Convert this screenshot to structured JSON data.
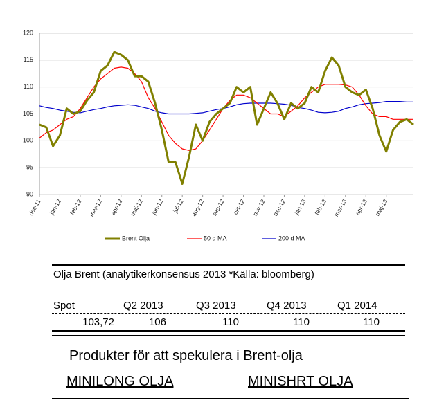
{
  "chart_data": {
    "type": "line",
    "categories": [
      "dec-11",
      null,
      null,
      "jan-12",
      null,
      null,
      "feb-12",
      null,
      null,
      "mar-12",
      null,
      null,
      "apr-12",
      null,
      null,
      "maj-12",
      null,
      null,
      "jun-12",
      null,
      null,
      "jul-12",
      null,
      null,
      "aug-12",
      null,
      null,
      "sep-12",
      null,
      null,
      "okt-12",
      null,
      null,
      "nov-12",
      null,
      null,
      "dec-12",
      null,
      null,
      "jan-13",
      null,
      null,
      "feb-13",
      null,
      null,
      "mar-13",
      null,
      null,
      "apr-13",
      null,
      null,
      "maj-13",
      null,
      null,
      null,
      null
    ],
    "series": [
      {
        "name": "Brent Olja",
        "color": "#808000",
        "values": [
          103,
          102.5,
          99,
          101,
          106,
          105,
          105.5,
          107.5,
          109,
          113,
          114,
          116.5,
          116,
          115,
          112,
          112,
          111,
          107,
          102,
          96,
          96,
          92,
          97,
          103,
          100,
          103.5,
          105,
          106,
          107,
          110,
          109,
          110,
          103,
          106,
          109,
          107,
          104,
          107,
          106,
          107,
          110,
          109,
          113,
          115.5,
          114,
          110,
          109,
          108.5,
          109.5,
          106,
          101,
          98,
          102,
          103.5,
          104,
          103
        ]
      },
      {
        "name": "50 d MA",
        "color": "#ff0000",
        "values": [
          100.5,
          101.5,
          102,
          103,
          104,
          104.5,
          106,
          108,
          110,
          111.5,
          112.5,
          113.5,
          113.7,
          113.5,
          112.5,
          111,
          108,
          106,
          103.5,
          101,
          99.5,
          98.5,
          98.2,
          98.5,
          100,
          102,
          104,
          106,
          107.5,
          108.5,
          108.5,
          108,
          107,
          106,
          105,
          105,
          104.5,
          105.5,
          106.5,
          108,
          109,
          110,
          110.5,
          110.5,
          110.5,
          110.4,
          110,
          108.5,
          106.5,
          105,
          104.5,
          104.5,
          104,
          104,
          104,
          104
        ]
      },
      {
        "name": "200 d MA",
        "color": "#0000cc",
        "values": [
          106.5,
          106.2,
          106,
          105.7,
          105.5,
          105.3,
          105.2,
          105.5,
          105.8,
          106,
          106.3,
          106.5,
          106.6,
          106.7,
          106.6,
          106.3,
          106,
          105.5,
          105.2,
          105,
          105,
          105,
          105,
          105.1,
          105.2,
          105.5,
          105.8,
          106,
          106.3,
          106.7,
          106.9,
          107,
          107,
          107,
          107,
          106.9,
          106.8,
          106.6,
          106.2,
          106,
          105.7,
          105.3,
          105.2,
          105.3,
          105.5,
          106,
          106.3,
          106.7,
          106.9,
          107,
          107.1,
          107.3,
          107.3,
          107.3,
          107.2,
          107.2
        ]
      }
    ],
    "ylim": [
      90,
      120
    ],
    "yticks": [
      90,
      95,
      100,
      105,
      110,
      115,
      120
    ],
    "grid": true,
    "legend": "bottom"
  },
  "table": {
    "title": "Olja Brent (analytikerkonsensus 2013 *Källa: bloomberg)",
    "headers": [
      "Spot",
      "Q2 2013",
      "Q3 2013",
      "Q4 2013",
      "Q1 2014"
    ],
    "rows": [
      [
        "103,72",
        "106",
        "110",
        "110",
        "110"
      ]
    ]
  },
  "products": {
    "title": "Produkter för att spekulera i Brent-olja",
    "links": [
      "MINILONG OLJA",
      "MINISHRT OLJA"
    ]
  }
}
